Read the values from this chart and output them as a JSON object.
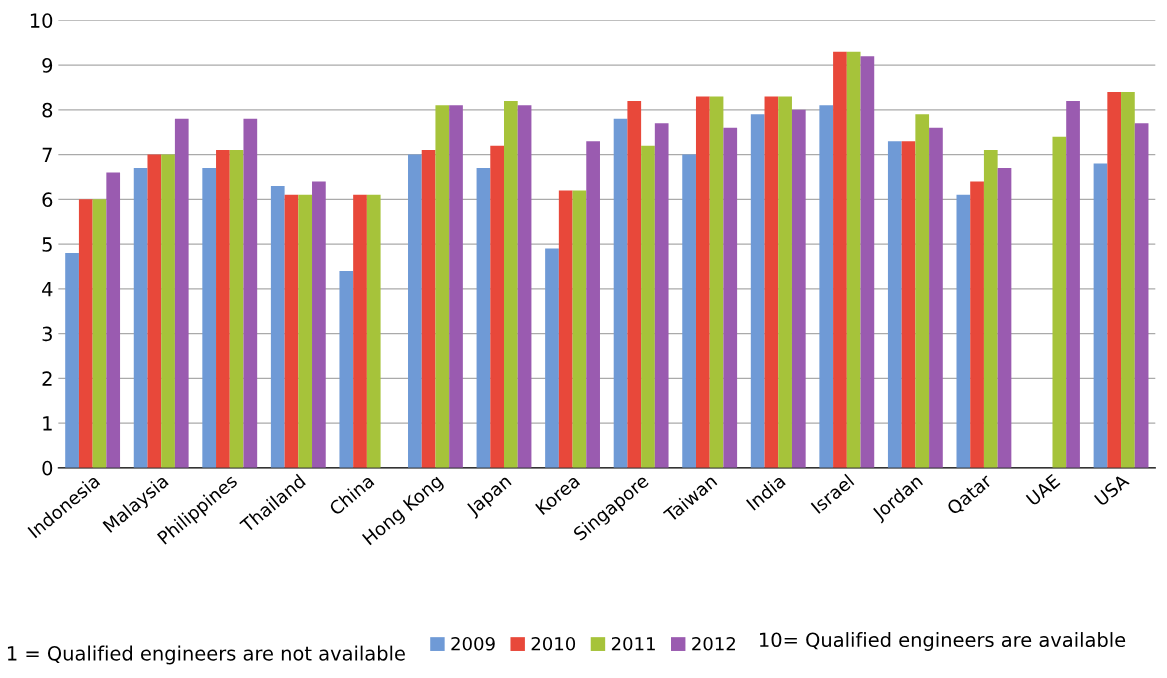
{
  "chart_data": {
    "type": "bar",
    "categories": [
      "Indonesia",
      "Malaysia",
      "Philippines",
      "Thailand",
      "China",
      "Hong Kong",
      "Japan",
      "Korea",
      "Singapore",
      "Taiwan",
      "India",
      "Israel",
      "Jordan",
      "Qatar",
      "UAE",
      "USA"
    ],
    "series": [
      {
        "name": "2009",
        "color": "#6f9ad6",
        "values": [
          4.8,
          6.7,
          6.7,
          6.3,
          4.4,
          7.0,
          6.7,
          4.9,
          7.8,
          7.0,
          7.9,
          8.1,
          7.3,
          6.1,
          null,
          6.8
        ]
      },
      {
        "name": "2010",
        "color": "#e8483a",
        "values": [
          6.0,
          7.0,
          7.1,
          6.1,
          6.1,
          7.1,
          7.2,
          6.2,
          8.2,
          8.3,
          8.3,
          9.3,
          7.3,
          6.4,
          null,
          8.4
        ]
      },
      {
        "name": "2011",
        "color": "#a6c33a",
        "values": [
          6.0,
          7.0,
          7.1,
          6.1,
          6.1,
          8.1,
          8.2,
          6.2,
          7.2,
          8.3,
          8.3,
          9.3,
          7.9,
          7.1,
          7.4,
          8.4
        ]
      },
      {
        "name": "2012",
        "color": "#9a5bb0",
        "values": [
          6.6,
          7.8,
          7.8,
          6.4,
          null,
          8.1,
          8.1,
          7.3,
          7.7,
          7.6,
          8.0,
          9.2,
          7.6,
          6.7,
          8.2,
          7.7
        ]
      }
    ],
    "ylim": [
      0,
      10
    ],
    "yticks": [
      0,
      1,
      2,
      3,
      4,
      5,
      6,
      7,
      8,
      9,
      10
    ],
    "grid": "y",
    "legend": "bottom",
    "annotations": [
      "1 = Qualified engineers are not available",
      "10= Qualified engineers are available"
    ]
  }
}
